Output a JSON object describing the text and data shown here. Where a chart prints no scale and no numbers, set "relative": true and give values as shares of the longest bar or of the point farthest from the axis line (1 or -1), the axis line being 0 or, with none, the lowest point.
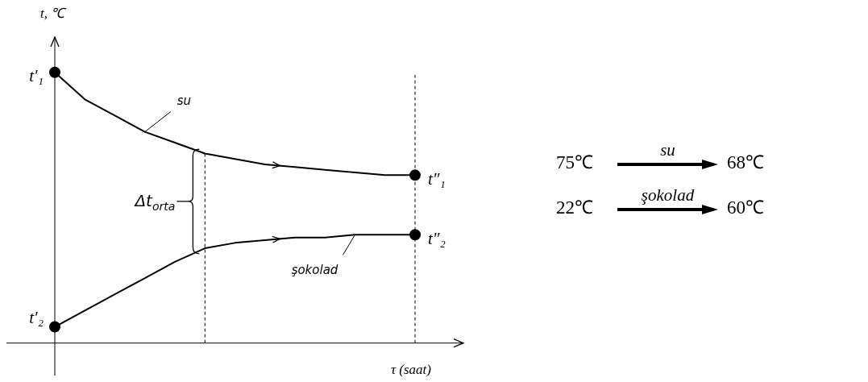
{
  "chart_data": [
    {
      "type": "line",
      "relative": true,
      "line_style": "solid",
      "ylabel": "t, ℃",
      "xlabel": "τ (saat)",
      "categories": [
        null,
        null,
        null,
        null,
        null,
        null,
        null,
        null,
        null,
        null,
        null,
        null,
        null
      ],
      "series": [
        {
          "name": "su",
          "color": "#000000",
          "values": [
            1,
            0.9,
            0.84,
            0.78,
            0.74,
            0.7,
            0.68,
            0.66,
            0.65,
            0.64,
            0.63,
            0.62,
            0.62
          ]
        },
        {
          "name": "şokolad",
          "color": "#000000",
          "values": [
            0.06,
            0.12,
            0.18,
            0.24,
            0.3,
            0.35,
            0.37,
            0.38,
            0.39,
            0.39,
            0.4,
            0.4,
            0.4
          ]
        }
      ],
      "annotations": [
        "t′₁",
        "t″₁",
        "t′₂",
        "t″₂",
        "Δt$_{orta}$"
      ]
    },
    {
      "type": "other",
      "annotations": [
        "75℃",
        "su",
        "68℃",
        "22℃",
        "şokolad",
        "60℃"
      ]
    }
  ]
}
